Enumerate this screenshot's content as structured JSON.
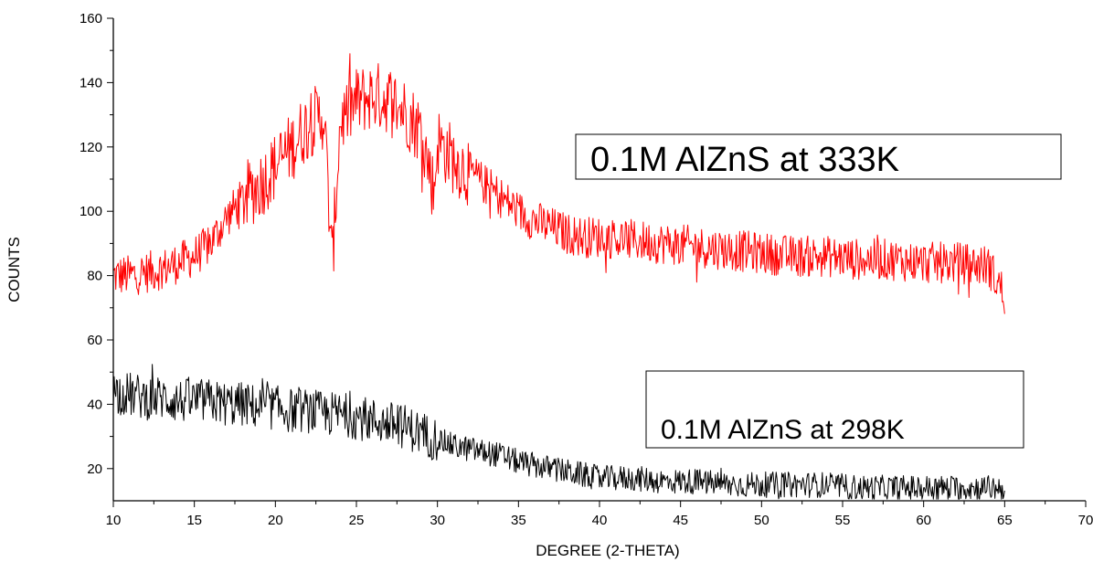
{
  "chart_data": {
    "type": "line",
    "title": "",
    "xlabel": "DEGREE (2-THETA)",
    "ylabel": "COUNTS",
    "xlim": [
      10,
      70
    ],
    "ylim": [
      10,
      160
    ],
    "x_ticks": [
      "10",
      "15",
      "20",
      "25",
      "30",
      "35",
      "40",
      "45",
      "50",
      "55",
      "60",
      "65",
      "70"
    ],
    "y_ticks": [
      "20",
      "40",
      "60",
      "80",
      "100",
      "120",
      "140",
      "160"
    ],
    "grid": false,
    "series": [
      {
        "name": "0.1M AlZnS at 333K",
        "color": "#ff0000",
        "x": [
          10,
          11,
          12,
          13,
          14,
          15,
          16,
          17,
          18,
          19,
          20,
          21,
          22,
          23,
          23.5,
          24,
          25,
          26,
          27,
          28,
          29,
          29.8,
          30,
          31,
          32,
          33,
          34,
          35,
          36,
          37,
          38,
          39,
          40,
          42,
          44,
          46,
          48,
          50,
          52,
          54,
          56,
          58,
          60,
          62,
          64,
          65
        ],
        "y": [
          80,
          80,
          81,
          82,
          84,
          86,
          90,
          98,
          104,
          108,
          114,
          120,
          127,
          130,
          83,
          128,
          134,
          136,
          135,
          131,
          125,
          106,
          122,
          116,
          112,
          108,
          104,
          100,
          97,
          95,
          93,
          92,
          92,
          91,
          90,
          89,
          88,
          87,
          86,
          86,
          85,
          85,
          84,
          84,
          83,
          74
        ]
      },
      {
        "name": "0.1M AlZnS at 298K",
        "color": "#000000",
        "x": [
          10,
          11,
          12,
          13,
          14,
          15,
          16,
          17,
          18,
          19,
          20,
          21,
          22,
          23,
          24,
          25,
          26,
          27,
          28,
          29,
          30,
          31,
          32,
          33,
          34,
          35,
          36,
          37,
          38,
          39,
          40,
          42,
          44,
          46,
          48,
          50,
          52,
          54,
          56,
          58,
          60,
          62,
          64,
          65
        ],
        "y": [
          44,
          43,
          42,
          42,
          41,
          41,
          41,
          40,
          40,
          39,
          39,
          38,
          38,
          37,
          37,
          36,
          35,
          34,
          33,
          31,
          29,
          27,
          26,
          25,
          24,
          22,
          21,
          20,
          19,
          18,
          17,
          17,
          16,
          16,
          15,
          15,
          15,
          15,
          14,
          14,
          14,
          14,
          14,
          14
        ]
      }
    ],
    "legend": [
      {
        "text": "0.1M AlZnS at 333K",
        "series": 0
      },
      {
        "text": "0.1M AlZnS at 298K",
        "series": 1
      }
    ]
  }
}
